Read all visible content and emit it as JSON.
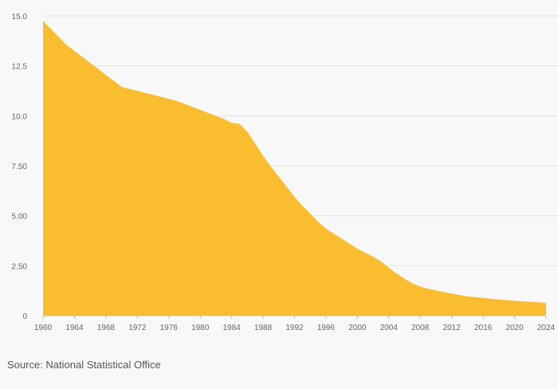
{
  "colors": {
    "area_fill": "#f9bd2f",
    "gridline": "#e4e4e4",
    "axis_line": "#bfbfbf",
    "tick_text": "#666666",
    "background": "#f8f8f8"
  },
  "source": "Source: National Statistical Office",
  "chart_data": {
    "type": "area",
    "title": "",
    "xlabel": "",
    "ylabel": "",
    "xlim": [
      1960,
      2024
    ],
    "ylim": [
      0,
      15
    ],
    "grid": "horizontal",
    "legend": "none",
    "y_ticks": [
      {
        "value": 0,
        "label": "0"
      },
      {
        "value": 2.5,
        "label": "2.50"
      },
      {
        "value": 5,
        "label": "5.00"
      },
      {
        "value": 7.5,
        "label": "7.50"
      },
      {
        "value": 10,
        "label": "10.0"
      },
      {
        "value": 12.5,
        "label": "12.5"
      },
      {
        "value": 15,
        "label": "15.0"
      }
    ],
    "x_ticks": [
      1960,
      1964,
      1968,
      1972,
      1976,
      1980,
      1984,
      1988,
      1992,
      1996,
      2000,
      2004,
      2008,
      2012,
      2016,
      2020,
      2024
    ],
    "series": [
      {
        "x": [
          1960,
          1961,
          1962,
          1963,
          1964,
          1965,
          1966,
          1967,
          1968,
          1969,
          1970,
          1971,
          1972,
          1973,
          1974,
          1975,
          1976,
          1977,
          1978,
          1979,
          1980,
          1981,
          1982,
          1983,
          1984,
          1985,
          1986,
          1987,
          1988,
          1989,
          1990,
          1991,
          1992,
          1993,
          1994,
          1995,
          1996,
          1997,
          1998,
          1999,
          2000,
          2001,
          2002,
          2003,
          2004,
          2005,
          2006,
          2007,
          2008,
          2009,
          2010,
          2011,
          2012,
          2013,
          2014,
          2015,
          2016,
          2017,
          2018,
          2019,
          2020,
          2021,
          2022,
          2023,
          2024
        ],
        "values": [
          14.75,
          14.35,
          13.95,
          13.55,
          13.25,
          12.95,
          12.65,
          12.35,
          12.05,
          11.75,
          11.45,
          11.35,
          11.25,
          11.15,
          11.05,
          10.95,
          10.85,
          10.75,
          10.6,
          10.45,
          10.3,
          10.15,
          10.0,
          9.85,
          9.65,
          9.6,
          9.2,
          8.6,
          8.0,
          7.45,
          6.95,
          6.45,
          5.95,
          5.5,
          5.1,
          4.7,
          4.35,
          4.1,
          3.85,
          3.6,
          3.35,
          3.15,
          2.95,
          2.72,
          2.4,
          2.1,
          1.85,
          1.62,
          1.45,
          1.35,
          1.26,
          1.18,
          1.1,
          1.03,
          0.97,
          0.93,
          0.89,
          0.85,
          0.81,
          0.78,
          0.75,
          0.72,
          0.69,
          0.67,
          0.64
        ]
      }
    ]
  }
}
